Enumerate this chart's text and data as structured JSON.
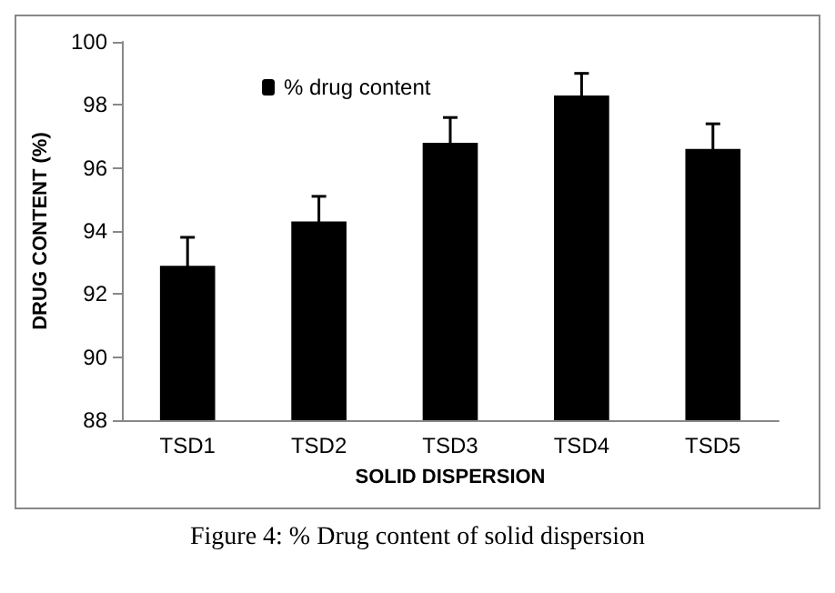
{
  "chart_data": {
    "type": "bar",
    "categories": [
      "TSD1",
      "TSD2",
      "TSD3",
      "TSD4",
      "TSD5"
    ],
    "series": [
      {
        "name": "% drug content",
        "color": "#000000",
        "values": [
          92.9,
          94.3,
          96.8,
          98.3,
          96.6
        ],
        "errors": [
          0.9,
          0.8,
          0.8,
          0.7,
          0.8
        ]
      }
    ],
    "xlabel": "SOLID DISPERSION",
    "ylabel": "DRUG CONTENT (%)",
    "ylim": [
      88,
      100
    ],
    "yticks": [
      88,
      90,
      92,
      94,
      96,
      98,
      100
    ],
    "grid": false,
    "legend": "top left",
    "annotations": [
      "Figure 4: % Drug content of solid dispersion"
    ]
  }
}
